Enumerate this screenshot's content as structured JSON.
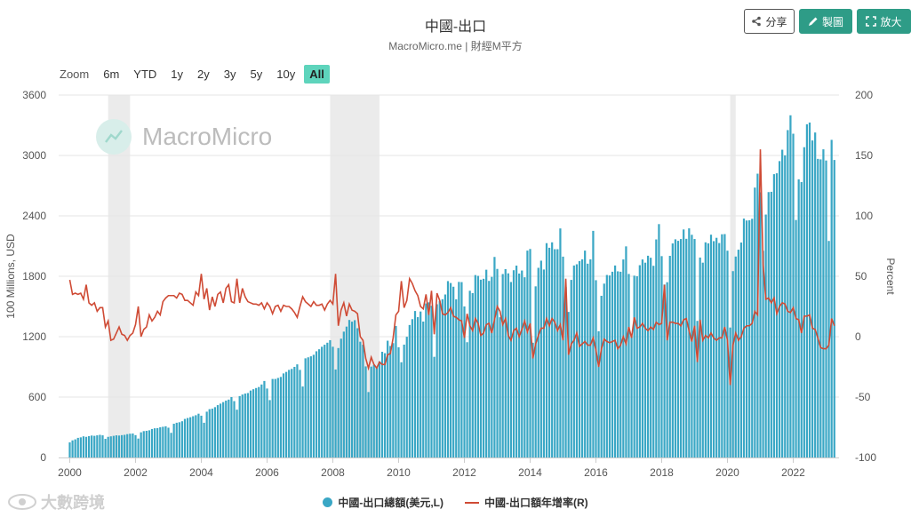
{
  "header": {
    "title": "中國-出口",
    "subtitle": "MacroMicro.me | 財經M平方",
    "share_label": "分享",
    "draw_label": "製圖",
    "zoom_label": "放大"
  },
  "range_selector": {
    "label": "Zoom",
    "options": [
      "6m",
      "YTD",
      "1y",
      "2y",
      "3y",
      "5y",
      "10y",
      "All"
    ],
    "active": "All"
  },
  "watermark": {
    "text": "MacroMicro"
  },
  "stamp": {
    "text": "大數跨境"
  },
  "legend": {
    "series1": "中國-出口總額(美元,L)",
    "series2": "中國-出口額年增率(R)"
  },
  "colors": {
    "bars": "#3aa7c5",
    "line": "#cf4b35",
    "recession_band": "#ebebeb",
    "accent_button": "#2e9c87"
  },
  "chart_data": {
    "type": "bar+line",
    "x_start": "2000-01",
    "x_frequency": "monthly",
    "ylabel_left": "100 Millions, USD",
    "ylabel_right": "Percent",
    "ylim_left": [
      0,
      3600
    ],
    "ylim_right": [
      -100,
      200
    ],
    "yticks_left": [
      0,
      600,
      1200,
      1800,
      2400,
      3000,
      3600
    ],
    "yticks_right": [
      -100,
      -50,
      0,
      50,
      100,
      150,
      200
    ],
    "xticks": [
      "2000",
      "2002",
      "2004",
      "2006",
      "2008",
      "2010",
      "2012",
      "2014",
      "2016",
      "2018",
      "2020",
      "2022"
    ],
    "shaded_periods": [
      [
        "2001-03",
        "2001-11"
      ],
      [
        "2007-12",
        "2009-06"
      ],
      [
        "2020-02",
        "2020-04"
      ]
    ],
    "series": [
      {
        "name": "中國-出口總額(美元,L)",
        "type": "bar",
        "values": [
          150,
          170,
          180,
          195,
          200,
          210,
          205,
          212,
          218,
          215,
          220,
          225,
          220,
          185,
          205,
          210,
          215,
          220,
          218,
          222,
          225,
          232,
          236,
          238,
          222,
          188,
          250,
          262,
          265,
          270,
          283,
          290,
          292,
          300,
          305,
          310,
          296,
          245,
          335,
          345,
          350,
          360,
          383,
          392,
          400,
          410,
          420,
          435,
          415,
          345,
          455,
          480,
          485,
          500,
          520,
          535,
          550,
          565,
          575,
          600,
          560,
          475,
          610,
          625,
          635,
          640,
          665,
          678,
          690,
          700,
          725,
          760,
          685,
          570,
          780,
          780,
          790,
          800,
          835,
          850,
          870,
          880,
          900,
          925,
          870,
          705,
          985,
          995,
          1005,
          1020,
          1055,
          1075,
          1100,
          1120,
          1140,
          1165,
          1100,
          874,
          1087,
          1180,
          1250,
          1300,
          1366,
          1349,
          1364,
          1284,
          1150,
          1120,
          905,
          650,
          903,
          920,
          890,
          955,
          1050,
          1036,
          1160,
          1108,
          1136,
          1306,
          1095,
          946,
          1121,
          1199,
          1316,
          1374,
          1455,
          1394,
          1450,
          1350,
          1530,
          1541,
          1507,
          1000,
          1522,
          1556,
          1572,
          1619,
          1752,
          1733,
          1696,
          1571,
          1744,
          1742,
          1500,
          1145,
          1656,
          1633,
          1812,
          1804,
          1766,
          1775,
          1865,
          1754,
          1794,
          1992,
          1873,
          1393,
          1822,
          1871,
          1829,
          1743,
          1860,
          1906,
          1827,
          1857,
          1790,
          2055,
          2071,
          1140,
          1700,
          1884,
          1955,
          1867,
          2129,
          2083,
          2137,
          2069,
          2069,
          2275,
          1995,
          1693,
          1446,
          1764,
          1907,
          1919,
          1951,
          1968,
          2055,
          1925,
          1968,
          2251,
          1761,
          1254,
          1606,
          1727,
          1813,
          1808,
          1845,
          1907,
          1849,
          1845,
          1967,
          2097,
          1823,
          1202,
          1806,
          1800,
          1910,
          1967,
          1935,
          2004,
          1984,
          1904,
          2166,
          2318,
          2000,
          1718,
          1741,
          2003,
          2126,
          2167,
          2152,
          2170,
          2265,
          2172,
          2276,
          2212,
          2170,
          1357,
          1986,
          1935,
          2137,
          2127,
          2213,
          2149,
          2182,
          2130,
          2217,
          2219,
          2054,
          1291,
          1851,
          1996,
          2064,
          2135,
          2373,
          2354,
          2356,
          2371,
          2681,
          2819,
          2634,
          2053,
          2413,
          2636,
          2639,
          2814,
          2823,
          2944,
          3057,
          3001,
          3252,
          3399,
          3216,
          2359,
          2763,
          2736,
          3082,
          3310,
          3327,
          3149,
          3228,
          2966,
          2961,
          3061,
          2950,
          2151,
          3155,
          2955
        ]
      },
      {
        "name": "中國-出口額年增率(R)",
        "type": "line",
        "values": [
          47,
          35,
          36,
          35,
          36,
          31,
          43,
          28,
          26,
          28,
          21,
          24,
          24,
          8,
          13,
          -3,
          -2,
          3,
          8,
          2,
          1,
          -3,
          1,
          3,
          10,
          25,
          0,
          6,
          8,
          18,
          13,
          16,
          21,
          18,
          29,
          32,
          34,
          34,
          34,
          32,
          36,
          35,
          30,
          30,
          28,
          26,
          37,
          34,
          52,
          31,
          40,
          22,
          33,
          25,
          35,
          37,
          28,
          40,
          43,
          29,
          28,
          48,
          28,
          40,
          33,
          29,
          28,
          27,
          27,
          26,
          28,
          23,
          28,
          25,
          19,
          25,
          26,
          21,
          26,
          25,
          25,
          23,
          20,
          16,
          25,
          33,
          29,
          27,
          25,
          29,
          26,
          26,
          27,
          22,
          27,
          30,
          27,
          52,
          9,
          22,
          28,
          17,
          27,
          22,
          21,
          19,
          0,
          -3,
          -18,
          -26,
          -17,
          -23,
          -26,
          -21,
          -23,
          -23,
          -15,
          -14,
          -1,
          18,
          21,
          46,
          24,
          30,
          48,
          44,
          38,
          34,
          25,
          23,
          35,
          18,
          38,
          2,
          36,
          30,
          19,
          18,
          20,
          24,
          17,
          16,
          14,
          13,
          -1,
          19,
          9,
          5,
          15,
          11,
          1,
          3,
          10,
          11,
          3,
          14,
          25,
          21,
          10,
          15,
          1,
          -3,
          5,
          7,
          0,
          6,
          13,
          4,
          11,
          -18,
          -6,
          1,
          7,
          7,
          15,
          9,
          15,
          12,
          5,
          10,
          -3,
          48,
          -15,
          -6,
          -3,
          3,
          -8,
          -6,
          -4,
          -7,
          -7,
          -1,
          -11,
          -25,
          -10,
          -2,
          -4,
          -5,
          -4,
          -3,
          -10,
          -7,
          0,
          -6,
          8,
          -1,
          16,
          7,
          8,
          11,
          7,
          5,
          8,
          6,
          12,
          10,
          11,
          43,
          -3,
          12,
          12,
          11,
          11,
          9,
          14,
          15,
          5,
          -4,
          9,
          -21,
          14,
          -3,
          1,
          -1,
          3,
          -1,
          -3,
          -1,
          -1,
          8,
          -3,
          -40,
          -7,
          3,
          -3,
          0,
          7,
          9,
          9,
          11,
          21,
          18,
          155,
          60,
          31,
          32,
          28,
          32,
          19,
          25,
          28,
          27,
          21,
          20,
          24,
          15,
          14,
          3,
          17,
          17,
          18,
          7,
          6,
          -1,
          -9,
          -10,
          -10,
          -7,
          15,
          9
        ]
      }
    ]
  }
}
